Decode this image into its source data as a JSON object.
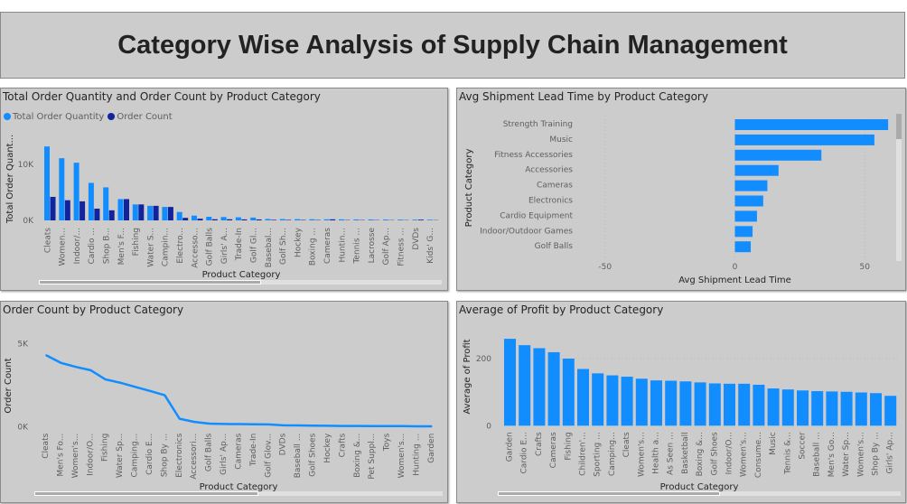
{
  "page_title": "Category Wise Analysis of Supply Chain Management",
  "colors": {
    "primary": "#118dff",
    "secondary": "#12239e",
    "panel_bg": "#cccccc"
  },
  "chart_data": [
    {
      "id": "qty_count",
      "type": "bar",
      "title": "Total Order Quantity and Order Count by Product Category",
      "xlabel": "Product Category",
      "ylabel": "Total Order Quant...",
      "legend_position": "top-left",
      "yticks": [
        "0K",
        "10K"
      ],
      "ylim": [
        0,
        15000
      ],
      "categories": [
        "Cleats",
        "Women...",
        "Indoor/...",
        "Cardio ...",
        "Shop B...",
        "Men's F...",
        "Fishing",
        "Water S...",
        "Campin...",
        "Electro...",
        "Accesso...",
        "Golf Balls",
        "Girls' A...",
        "Trade-In",
        "Golf Gl...",
        "Basebal...",
        "Golf Sh...",
        "Hockey",
        "Boxing ...",
        "Cameras",
        "Huntin...",
        "Tennis ...",
        "Lacrosse",
        "Golf Ap...",
        "Fitness ...",
        "DVDs",
        "Kids' G..."
      ],
      "series": [
        {
          "name": "Total Order Quantity",
          "color": "#118dff",
          "values": [
            13200,
            11100,
            10300,
            6700,
            5900,
            3800,
            2850,
            2600,
            2400,
            1500,
            850,
            650,
            600,
            550,
            500,
            250,
            230,
            220,
            200,
            190,
            180,
            170,
            160,
            150,
            140,
            130,
            120
          ]
        },
        {
          "name": "Order Count",
          "color": "#12239e",
          "values": [
            4200,
            3600,
            3400,
            2100,
            1800,
            3800,
            2850,
            2600,
            2400,
            450,
            300,
            200,
            200,
            180,
            170,
            100,
            90,
            80,
            70,
            190,
            60,
            60,
            55,
            50,
            50,
            130,
            45
          ]
        }
      ]
    },
    {
      "id": "lead_time",
      "type": "bar",
      "orientation": "horizontal",
      "title": "Avg Shipment Lead Time by Product Category",
      "xlabel": "Avg Shipment Lead Time",
      "ylabel": "Product Category",
      "xlim": [
        -60,
        60
      ],
      "xticks": [
        "-50",
        "0",
        "50"
      ],
      "categories": [
        "Strength Training",
        "Music",
        "Fitness Accessories",
        "Accessories",
        "Cameras",
        "Electronics",
        "Cardio Equipment",
        "Indoor/Outdoor Games",
        "Golf Balls"
      ],
      "values": [
        59,
        53.7,
        33.3,
        16.8,
        12.5,
        10.9,
        8.5,
        6.8,
        6.1
      ]
    },
    {
      "id": "order_count_line",
      "type": "line",
      "title": "Order Count by Product Category",
      "xlabel": "Product Category",
      "ylabel": "Order Count",
      "ylim": [
        0,
        5000
      ],
      "yticks": [
        "0K",
        "5K"
      ],
      "categories": [
        "Cleats",
        "Men's Fo...",
        "Women's...",
        "Indoor/O...",
        "Fishing",
        "Water Sp...",
        "Camping...",
        "Cardio E...",
        "Shop By ...",
        "Electronics",
        "Accessori...",
        "Golf Balls",
        "Girls' Ap...",
        "Cameras",
        "Trade-In",
        "Golf Glov...",
        "DVDs",
        "Baseball ...",
        "Golf Shoes",
        "Hockey",
        "Crafts",
        "Boxing &...",
        "Pet Suppl...",
        "Toys",
        "Women's...",
        "Hunting ...",
        "Garden"
      ],
      "values": [
        4300,
        3840,
        3600,
        3400,
        2850,
        2650,
        2400,
        2160,
        1900,
        490,
        300,
        200,
        180,
        170,
        160,
        150,
        100,
        90,
        80,
        70,
        60,
        60,
        50,
        50,
        50,
        40,
        40
      ]
    },
    {
      "id": "avg_profit",
      "type": "bar",
      "title": "Average of Profit by Product Category",
      "xlabel": "Product Category",
      "ylabel": "Average of Profit",
      "ylim": [
        0,
        280
      ],
      "yticks": [
        "0",
        "200"
      ],
      "categories": [
        "Garden",
        "Cardio E...",
        "Crafts",
        "Cameras",
        "Fishing",
        "Children'...",
        "Sporting ...",
        "Camping...",
        "Cleats",
        "Women's...",
        "Health a...",
        "As Seen ...",
        "Basketball",
        "Boxing &...",
        "Golf Shoes",
        "Indoor/O...",
        "Women's...",
        "Consume...",
        "Music",
        "Tennis &...",
        "Soccer",
        "Baseball ...",
        "Men's Go...",
        "Water Sp...",
        "Women's...",
        "Shop By ...",
        "Girls' Ap..."
      ],
      "values": [
        259,
        240,
        231,
        219,
        200,
        169,
        156,
        150,
        146,
        140,
        135,
        134,
        132,
        129,
        126,
        125,
        125,
        122,
        111,
        108,
        105,
        103,
        102,
        101,
        99,
        97,
        89
      ]
    }
  ]
}
